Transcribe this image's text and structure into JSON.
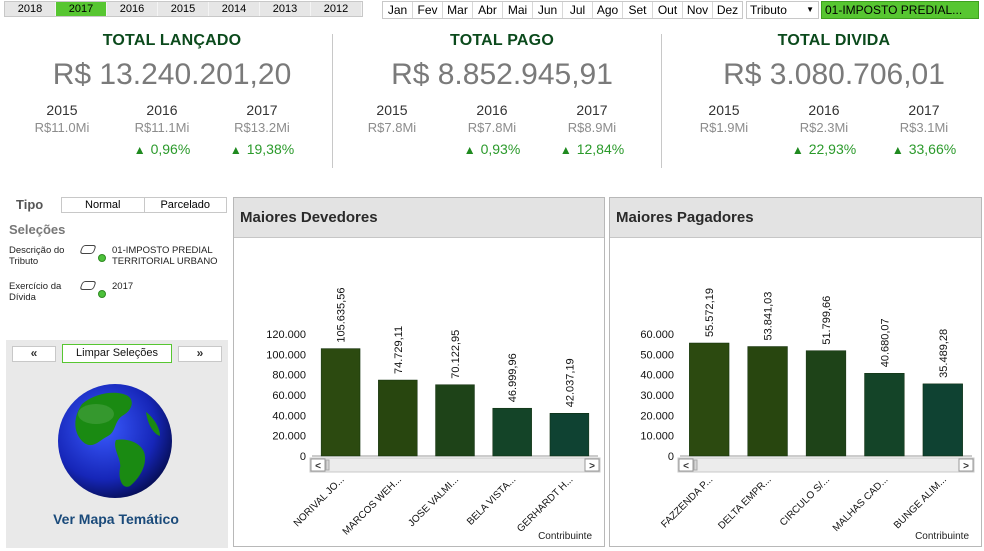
{
  "years": [
    "2018",
    "2017",
    "2016",
    "2015",
    "2014",
    "2013",
    "2012"
  ],
  "selected_year": "2017",
  "months": [
    "Jan",
    "Fev",
    "Mar",
    "Abr",
    "Mai",
    "Jun",
    "Jul",
    "Ago",
    "Set",
    "Out",
    "Nov",
    "Dez"
  ],
  "tributo_label": "Tributo",
  "tributo_value": "01-IMPOSTO PREDIAL...",
  "kpis": {
    "lancado": {
      "title": "TOTAL LANÇADO",
      "value": "R$ 13.240.201,20",
      "years": [
        {
          "year": "2015",
          "val": "R$11.0Mi",
          "pct": ""
        },
        {
          "year": "2016",
          "val": "R$11.1Mi",
          "pct": "0,96%"
        },
        {
          "year": "2017",
          "val": "R$13.2Mi",
          "pct": "19,38%"
        }
      ]
    },
    "pago": {
      "title": "TOTAL PAGO",
      "value": "R$ 8.852.945,91",
      "years": [
        {
          "year": "2015",
          "val": "R$7.8Mi",
          "pct": ""
        },
        {
          "year": "2016",
          "val": "R$7.8Mi",
          "pct": "0,93%"
        },
        {
          "year": "2017",
          "val": "R$8.9Mi",
          "pct": "12,84%"
        }
      ]
    },
    "divida": {
      "title": "TOTAL DIVIDA",
      "value": "R$ 3.080.706,01",
      "years": [
        {
          "year": "2015",
          "val": "R$1.9Mi",
          "pct": ""
        },
        {
          "year": "2016",
          "val": "R$2.3Mi",
          "pct": "22,93%"
        },
        {
          "year": "2017",
          "val": "R$3.1Mi",
          "pct": "33,66%"
        }
      ]
    }
  },
  "tipo": {
    "label": "Tipo",
    "options": [
      "Normal",
      "Parcelado"
    ]
  },
  "selecoes": {
    "title": "Seleções",
    "items": [
      {
        "label": "Descrição do Tributo",
        "value": "01-IMPOSTO PREDIAL TERRITORIAL URBANO"
      },
      {
        "label": "Exercício da Dívida",
        "value": "2017"
      }
    ]
  },
  "nav": {
    "prev": "«",
    "next": "»",
    "clear": "Limpar Seleções",
    "map_link": "Ver Mapa Temático"
  },
  "colors": {
    "selected_green": "#57c631",
    "title_green": "#0b4a1c",
    "up_arrow": "#1f8a1f"
  },
  "chart_data": [
    {
      "type": "bar",
      "title": "Maiores Devedores",
      "xlabel": "Contribuinte",
      "categories": [
        "NORIVAL JO...",
        "MARCOS WEH...",
        "JOSE VALMI...",
        "BELA VISTA...",
        "GERHARDT H..."
      ],
      "values": [
        105635.56,
        74729.11,
        70122.95,
        46999.96,
        42037.19
      ],
      "value_labels": [
        "105.635,56",
        "74.729,11",
        "70.122,95",
        "46.999,96",
        "42.037,19"
      ],
      "yticks": [
        "0",
        "20.000",
        "40.000",
        "60.000",
        "80.000",
        "100.000",
        "120.000"
      ],
      "ylim": [
        0,
        120000
      ]
    },
    {
      "type": "bar",
      "title": "Maiores Pagadores",
      "xlabel": "Contribuinte",
      "categories": [
        "FAZZENDA P...",
        "DELTA EMPR...",
        "CIRCULO S/...",
        "MALHAS CAD...",
        "BUNGE ALIM..."
      ],
      "values": [
        55572.19,
        53841.03,
        51799.66,
        40680.07,
        35489.28
      ],
      "value_labels": [
        "55.572,19",
        "53.841,03",
        "51.799,66",
        "40.680,07",
        "35.489,28"
      ],
      "yticks": [
        "0",
        "10.000",
        "20.000",
        "30.000",
        "40.000",
        "50.000",
        "60.000"
      ],
      "ylim": [
        0,
        60000
      ]
    }
  ]
}
